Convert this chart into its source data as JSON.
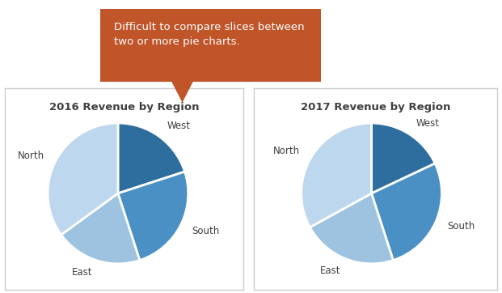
{
  "chart1_title": "2016 Revenue by Region",
  "chart2_title": "2017 Revenue by Region",
  "labels_2016": [
    "West",
    "South",
    "East",
    "North"
  ],
  "labels_2017": [
    "West",
    "South",
    "East",
    "North"
  ],
  "values_2016": [
    20,
    25,
    20,
    35
  ],
  "values_2017": [
    18,
    27,
    22,
    33
  ],
  "colors": [
    "#2E6E9E",
    "#4A90C4",
    "#9DC3E0",
    "#BDD7EE"
  ],
  "callout_text": "Difficult to compare slices between\ntwo or more pie charts.",
  "callout_bg": "#C0552A",
  "callout_text_color": "#FFFFFF",
  "bg_color": "#FFFFFF",
  "panel_bg": "#FFFFFF",
  "panel_border": "#CCCCCC",
  "label_color": "#404040",
  "title_color": "#404040",
  "startangle_2016": 90,
  "startangle_2017": 90
}
